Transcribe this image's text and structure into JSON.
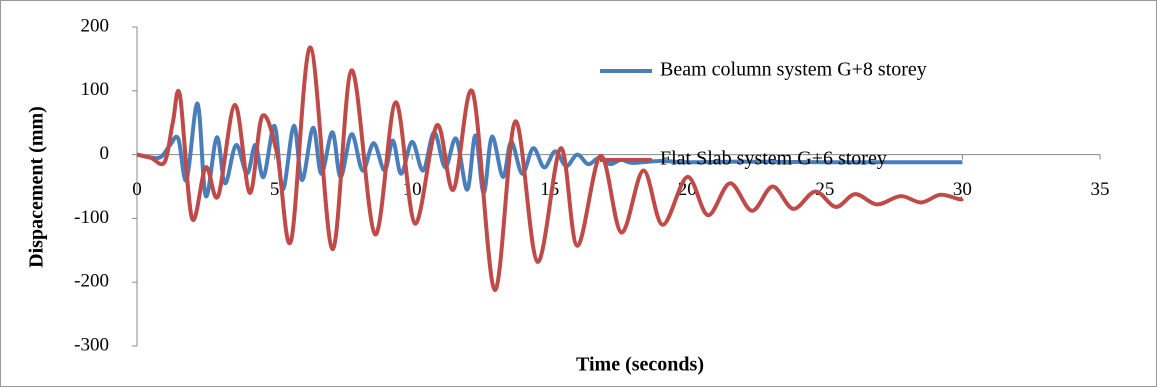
{
  "chart_data": {
    "type": "line",
    "xlabel": "Time (seconds)",
    "ylabel": "Dispacement (mm)",
    "xlim": [
      0,
      35
    ],
    "xticks": [
      0,
      5,
      10,
      15,
      20,
      25,
      30,
      35
    ],
    "ylim": [
      -300,
      200
    ],
    "yticks": [
      -300,
      -200,
      -100,
      0,
      100,
      200
    ],
    "grid": false,
    "legend": "upper right",
    "series": [
      {
        "name": "Beam column system G+8 storey",
        "color": "#4a7ebb",
        "x": [
          0,
          0.8,
          1.2,
          1.5,
          1.8,
          2.2,
          2.5,
          2.9,
          3.2,
          3.6,
          4.0,
          4.3,
          4.6,
          5.0,
          5.3,
          5.7,
          6.0,
          6.4,
          6.7,
          7.1,
          7.4,
          7.8,
          8.2,
          8.6,
          9.0,
          9.3,
          9.6,
          10.0,
          10.4,
          10.8,
          11.2,
          11.6,
          12.0,
          12.3,
          12.6,
          12.9,
          13.3,
          13.6,
          14.0,
          14.4,
          14.8,
          15.2,
          15.6,
          16.0,
          16.4,
          16.8,
          17.2,
          17.6,
          18.0,
          19,
          20,
          22,
          25,
          30
        ],
        "values": [
          0,
          -5,
          15,
          25,
          -40,
          80,
          -65,
          27,
          -45,
          15,
          -30,
          15,
          -35,
          45,
          -55,
          45,
          -40,
          42,
          -30,
          35,
          -35,
          32,
          -25,
          18,
          -25,
          22,
          -30,
          20,
          -25,
          35,
          -20,
          25,
          -55,
          30,
          -60,
          28,
          -35,
          20,
          -30,
          10,
          -20,
          5,
          -18,
          0,
          -15,
          -5,
          -15,
          -8,
          -13,
          -10,
          -12,
          -11,
          -12,
          -12
        ]
      },
      {
        "name": "Flat Slab system G+6 storey",
        "color": "#be4b48",
        "x": [
          0,
          0.5,
          1.0,
          1.3,
          1.56,
          2.0,
          2.5,
          2.95,
          3.56,
          4.1,
          4.55,
          5.1,
          5.6,
          6.3,
          7.1,
          7.8,
          8.65,
          9.4,
          10.1,
          10.9,
          11.5,
          12.2,
          13.0,
          13.75,
          14.55,
          15.4,
          16.0,
          16.85,
          17.6,
          18.4,
          19.1,
          20.0,
          20.75,
          21.55,
          22.35,
          23.1,
          23.85,
          24.65,
          25.4,
          26.1,
          26.9,
          27.75,
          28.5,
          29.2,
          29.9,
          30
        ],
        "values": [
          0,
          -5,
          -12,
          50,
          93,
          -100,
          -20,
          -65,
          78,
          -60,
          60,
          0,
          -135,
          168,
          -148,
          132,
          -125,
          82,
          -108,
          46,
          -55,
          98,
          -212,
          52,
          -168,
          10,
          -143,
          -2,
          -122,
          -25,
          -110,
          -35,
          -95,
          -45,
          -88,
          -50,
          -85,
          -58,
          -82,
          -62,
          -78,
          -65,
          -75,
          -63,
          -70,
          -68
        ]
      }
    ]
  }
}
